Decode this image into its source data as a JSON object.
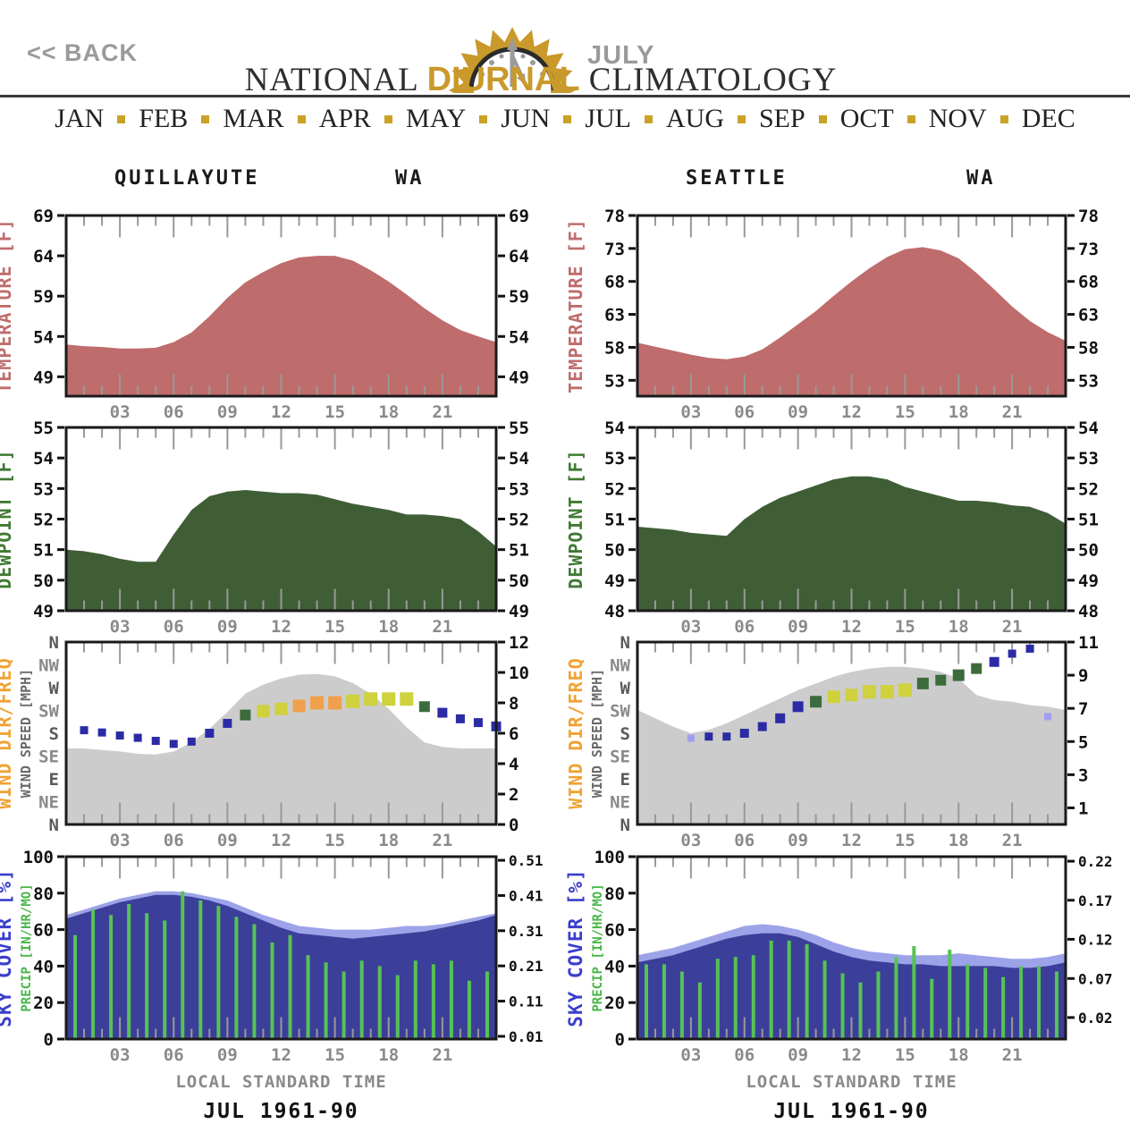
{
  "header": {
    "back_label": "<< BACK",
    "logo_month": "JULY",
    "title_left": "NATIONAL",
    "title_accent": "DIURNAL",
    "title_right": "CLIMATOLOGY",
    "months": [
      "JAN",
      "FEB",
      "MAR",
      "APR",
      "MAY",
      "JUN",
      "JUL",
      "AUG",
      "SEP",
      "OCT",
      "NOV",
      "DEC"
    ],
    "colors": {
      "accent_gold": "#c9992b",
      "muted_gray": "#9a9a9a",
      "title_dark": "#2e2e2e"
    }
  },
  "charts": {
    "xlabel": "LOCAL STANDARD TIME",
    "period": "JUL 1961-90",
    "x_tick_labels": [
      "03",
      "06",
      "09",
      "12",
      "15",
      "18",
      "21"
    ],
    "x_tick_hours": [
      3,
      6,
      9,
      12,
      15,
      18,
      21
    ],
    "palette": {
      "b": "#2b2ba6",
      "lb": "#9f9ff0",
      "g": "#3c6b3c",
      "y": "#cfd13d",
      "o": "#f0a04c"
    }
  },
  "chart_data": [
    {
      "station": "QUILLAYUTE",
      "state": "WA",
      "panel": "temperature",
      "type": "area",
      "fill": "#bf6c6c",
      "label": {
        "text": "TEMPERATURE [F]",
        "color": "#bf6c6c"
      },
      "range": [
        46.6,
        69
      ],
      "ticks": [
        49,
        54,
        59,
        64,
        69
      ],
      "x": [
        0,
        1,
        2,
        3,
        4,
        5,
        6,
        7,
        8,
        9,
        10,
        11,
        12,
        13,
        14,
        15,
        16,
        17,
        18,
        19,
        20,
        21,
        22,
        23,
        24
      ],
      "values": [
        53.0,
        52.8,
        52.7,
        52.5,
        52.5,
        52.6,
        53.3,
        54.5,
        56.5,
        58.8,
        60.7,
        62.0,
        63.1,
        63.8,
        64.0,
        64.0,
        63.4,
        62.2,
        60.8,
        59.2,
        57.5,
        56.0,
        54.8,
        54.0,
        53.3
      ]
    },
    {
      "station": "SEATTLE",
      "state": "WA",
      "panel": "temperature",
      "type": "area",
      "fill": "#bf6c6c",
      "label": {
        "text": "TEMPERATURE [F]",
        "color": "#bf6c6c"
      },
      "range": [
        50.6,
        78
      ],
      "ticks": [
        53,
        58,
        63,
        68,
        73,
        78
      ],
      "x": [
        0,
        1,
        2,
        3,
        4,
        5,
        6,
        7,
        8,
        9,
        10,
        11,
        12,
        13,
        14,
        15,
        16,
        17,
        18,
        19,
        20,
        21,
        22,
        23,
        24
      ],
      "values": [
        58.7,
        58.1,
        57.5,
        56.9,
        56.4,
        56.2,
        56.6,
        57.7,
        59.5,
        61.5,
        63.5,
        65.8,
        68.0,
        70.0,
        71.7,
        72.9,
        73.2,
        72.7,
        71.5,
        69.3,
        66.8,
        64.2,
        62.0,
        60.3,
        59.0
      ]
    },
    {
      "station": "QUILLAYUTE",
      "panel": "dewpoint",
      "type": "area",
      "fill": "#3f5e36",
      "label": {
        "text": "DEWPOINT [F]",
        "color": "#3f7a33"
      },
      "range": [
        49,
        55
      ],
      "ticks": [
        49,
        50,
        51,
        52,
        53,
        54,
        55
      ],
      "x": [
        0,
        1,
        2,
        3,
        4,
        5,
        6,
        7,
        8,
        9,
        10,
        11,
        12,
        13,
        14,
        15,
        16,
        17,
        18,
        19,
        20,
        21,
        22,
        23,
        24
      ],
      "values": [
        51.0,
        50.95,
        50.85,
        50.7,
        50.6,
        50.6,
        51.5,
        52.3,
        52.75,
        52.9,
        52.95,
        52.9,
        52.85,
        52.85,
        52.8,
        52.65,
        52.5,
        52.4,
        52.3,
        52.15,
        52.15,
        52.1,
        52.0,
        51.6,
        51.1
      ]
    },
    {
      "station": "SEATTLE",
      "panel": "dewpoint",
      "type": "area",
      "fill": "#3f5e36",
      "label": {
        "text": "DEWPOINT [F]",
        "color": "#3f7a33"
      },
      "range": [
        48,
        54
      ],
      "ticks": [
        48,
        49,
        50,
        51,
        52,
        53,
        54
      ],
      "x": [
        0,
        1,
        2,
        3,
        4,
        5,
        6,
        7,
        8,
        9,
        10,
        11,
        12,
        13,
        14,
        15,
        16,
        17,
        18,
        19,
        20,
        21,
        22,
        23,
        24
      ],
      "values": [
        50.75,
        50.7,
        50.65,
        50.55,
        50.5,
        50.45,
        51.0,
        51.4,
        51.7,
        51.9,
        52.1,
        52.3,
        52.4,
        52.4,
        52.3,
        52.05,
        51.9,
        51.75,
        51.6,
        51.6,
        51.55,
        51.45,
        51.4,
        51.2,
        50.85
      ]
    },
    {
      "station": "QUILLAYUTE",
      "panel": "wind",
      "type": "wind",
      "fill": "#cccccc",
      "label": {
        "text": "WIND DIR/FREQ",
        "color": "#f0a232"
      },
      "label2": {
        "text": "WIND SPEED [MPH]",
        "color": "#6b6b6b"
      },
      "range": [
        0,
        12
      ],
      "right_ticks": [
        0,
        2,
        4,
        6,
        8,
        10,
        12
      ],
      "dirs": [
        "N",
        "NW",
        "W",
        "SW",
        "S",
        "SE",
        "E",
        "NE",
        "N"
      ],
      "speed": [
        5.0,
        5.0,
        4.9,
        4.8,
        4.65,
        4.6,
        4.8,
        5.4,
        6.3,
        7.4,
        8.6,
        9.2,
        9.6,
        9.85,
        9.9,
        9.75,
        9.3,
        8.6,
        7.6,
        6.4,
        5.4,
        5.1,
        5.0,
        5.0,
        5.0
      ],
      "markers": [
        [
          1,
          6.2,
          "b",
          9
        ],
        [
          2,
          6.05,
          "b",
          9
        ],
        [
          3,
          5.85,
          "b",
          9
        ],
        [
          4,
          5.7,
          "b",
          9
        ],
        [
          5,
          5.5,
          "b",
          9
        ],
        [
          6,
          5.3,
          "b",
          9
        ],
        [
          7,
          5.45,
          "b",
          9
        ],
        [
          8,
          6.0,
          "b",
          10
        ],
        [
          9,
          6.65,
          "b",
          10
        ],
        [
          10,
          7.2,
          "g",
          12
        ],
        [
          11,
          7.45,
          "y",
          14
        ],
        [
          12,
          7.6,
          "y",
          14
        ],
        [
          13,
          7.8,
          "o",
          14
        ],
        [
          14,
          8.0,
          "o",
          15
        ],
        [
          15,
          8.0,
          "o",
          15
        ],
        [
          16,
          8.1,
          "y",
          15
        ],
        [
          17,
          8.25,
          "y",
          15
        ],
        [
          18,
          8.25,
          "y",
          15
        ],
        [
          19,
          8.25,
          "y",
          15
        ],
        [
          20,
          7.75,
          "g",
          12
        ],
        [
          21,
          7.35,
          "b",
          11
        ],
        [
          22,
          6.95,
          "b",
          10
        ],
        [
          23,
          6.7,
          "b",
          10
        ],
        [
          24,
          6.45,
          "b",
          11
        ]
      ]
    },
    {
      "station": "SEATTLE",
      "panel": "wind",
      "type": "wind",
      "fill": "#cccccc",
      "label": {
        "text": "WIND DIR/FREQ",
        "color": "#f0a232"
      },
      "label2": {
        "text": "WIND SPEED [MPH]",
        "color": "#6b6b6b"
      },
      "range": [
        0,
        11
      ],
      "right_ticks": [
        1,
        3,
        5,
        7,
        9,
        11
      ],
      "dirs": [
        "N",
        "NW",
        "W",
        "SW",
        "S",
        "SE",
        "E",
        "NE",
        "N"
      ],
      "speed": [
        6.9,
        6.4,
        5.9,
        5.5,
        5.7,
        6.1,
        6.6,
        7.1,
        7.6,
        8.1,
        8.5,
        8.9,
        9.2,
        9.4,
        9.5,
        9.5,
        9.4,
        9.2,
        8.8,
        7.8,
        7.5,
        7.4,
        7.2,
        7.1,
        6.9
      ],
      "markers": [
        [
          3,
          5.2,
          "lb",
          8
        ],
        [
          4,
          5.3,
          "b",
          9
        ],
        [
          5,
          5.3,
          "b",
          9
        ],
        [
          6,
          5.5,
          "b",
          10
        ],
        [
          7,
          5.9,
          "b",
          10
        ],
        [
          8,
          6.4,
          "b",
          11
        ],
        [
          9,
          7.1,
          "b",
          12
        ],
        [
          10,
          7.4,
          "g",
          13
        ],
        [
          11,
          7.7,
          "y",
          14
        ],
        [
          12,
          7.8,
          "y",
          14
        ],
        [
          13,
          8.0,
          "y",
          15
        ],
        [
          14,
          8.0,
          "y",
          15
        ],
        [
          15,
          8.1,
          "y",
          15
        ],
        [
          16,
          8.5,
          "g",
          13
        ],
        [
          17,
          8.7,
          "g",
          12
        ],
        [
          18,
          9.0,
          "g",
          13
        ],
        [
          19,
          9.4,
          "g",
          12
        ],
        [
          20,
          9.8,
          "b",
          11
        ],
        [
          21,
          10.3,
          "b",
          9
        ],
        [
          22,
          10.6,
          "b",
          9
        ],
        [
          23,
          6.5,
          "lb",
          8
        ]
      ]
    },
    {
      "station": "QUILLAYUTE",
      "panel": "sky",
      "type": "sky",
      "label": {
        "text": "SKY COVER [%]",
        "color": "#3a3ecc"
      },
      "label2": {
        "text": "PRECIP [IN/HR/MO]",
        "color": "#49b649"
      },
      "range": [
        0,
        100
      ],
      "left_ticks": [
        0,
        20,
        40,
        60,
        80,
        100
      ],
      "dark_color": "#3c3f99",
      "light_color": "#9da3e8",
      "bar_color": "#55c355",
      "light": [
        68,
        71,
        74,
        77,
        79,
        81,
        81,
        80,
        78,
        76,
        72,
        68,
        65,
        62,
        61,
        60,
        60,
        60,
        61,
        62,
        62,
        63,
        65,
        67,
        69
      ],
      "dark": [
        66,
        69,
        72,
        75,
        77,
        79,
        79,
        78,
        76,
        73,
        69,
        65,
        61,
        58,
        57,
        56,
        55,
        56,
        57,
        58,
        59,
        61,
        63,
        65,
        68
      ],
      "bars": [
        57,
        71,
        68,
        74,
        69,
        65,
        81,
        76,
        73,
        67,
        63,
        53,
        57,
        46,
        42,
        37,
        43,
        40,
        35,
        43,
        41,
        43,
        32,
        37
      ],
      "right_ticks": [
        {
          "t": "0.51",
          "p": 0.98
        },
        {
          "t": "0.41",
          "p": 0.787
        },
        {
          "t": "0.31",
          "p": 0.594
        },
        {
          "t": "0.21",
          "p": 0.401
        },
        {
          "t": "0.11",
          "p": 0.208
        },
        {
          "t": "0.01",
          "p": 0.015
        }
      ]
    },
    {
      "station": "SEATTLE",
      "panel": "sky",
      "type": "sky",
      "label": {
        "text": "SKY COVER [%]",
        "color": "#3a3ecc"
      },
      "label2": {
        "text": "PRECIP [IN/HR/MO]",
        "color": "#49b649"
      },
      "range": [
        0,
        100
      ],
      "left_ticks": [
        0,
        20,
        40,
        60,
        80,
        100
      ],
      "dark_color": "#3c3f99",
      "light_color": "#9da3e8",
      "bar_color": "#55c355",
      "light": [
        46,
        48,
        50,
        53,
        56,
        59,
        62,
        63,
        62,
        60,
        57,
        53,
        50,
        48,
        47,
        46,
        46,
        46,
        47,
        46,
        45,
        44,
        44,
        45,
        47
      ],
      "dark": [
        42,
        44,
        46,
        49,
        52,
        55,
        57,
        58,
        58,
        56,
        52,
        48,
        45,
        43,
        42,
        41,
        41,
        40,
        40,
        40,
        40,
        39,
        39,
        40,
        42
      ],
      "bars": [
        41,
        41,
        37,
        31,
        44,
        45,
        46,
        54,
        54,
        52,
        43,
        36,
        31,
        37,
        45,
        51,
        33,
        49,
        41,
        39,
        34,
        40,
        40,
        37
      ],
      "right_ticks": [
        {
          "t": "0.22",
          "p": 0.975
        },
        {
          "t": "0.17",
          "p": 0.761
        },
        {
          "t": "0.12",
          "p": 0.547
        },
        {
          "t": "0.07",
          "p": 0.332
        },
        {
          "t": "0.02",
          "p": 0.118
        }
      ]
    }
  ]
}
